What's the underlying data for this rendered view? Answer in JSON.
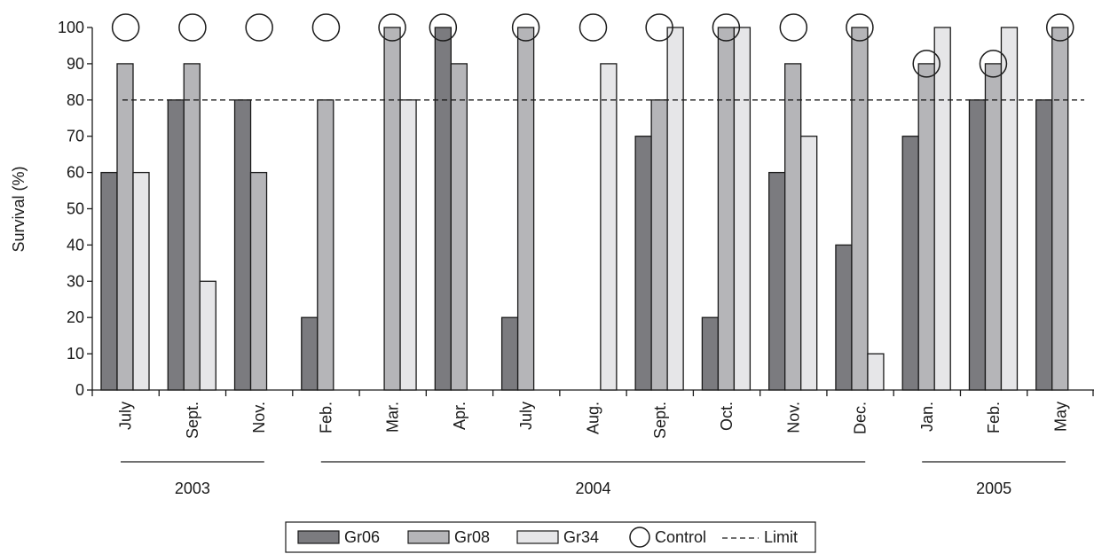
{
  "chart_data": {
    "type": "bar",
    "ylabel": "Survival (%)",
    "ylim": [
      0,
      100
    ],
    "yticks": [
      0,
      10,
      20,
      30,
      40,
      50,
      60,
      70,
      80,
      90,
      100
    ],
    "categories": [
      "July",
      "Sept.",
      "Nov.",
      "Feb.",
      "Mar.",
      "Apr.",
      "July",
      "Aug.",
      "Sept.",
      "Oct.",
      "Nov.",
      "Dec.",
      "Jan.",
      "Feb.",
      "May"
    ],
    "year_groups": [
      {
        "label": "2003",
        "first": 0,
        "last": 2
      },
      {
        "label": "2004",
        "first": 3,
        "last": 11
      },
      {
        "label": "2005",
        "first": 12,
        "last": 14
      }
    ],
    "series": [
      {
        "name": "Gr06",
        "color": "#7b7b7f",
        "values": [
          60,
          80,
          80,
          20,
          null,
          100,
          20,
          null,
          70,
          20,
          60,
          40,
          70,
          80,
          80
        ]
      },
      {
        "name": "Gr08",
        "color": "#b5b5b8",
        "values": [
          90,
          90,
          60,
          80,
          100,
          90,
          100,
          null,
          80,
          100,
          90,
          100,
          90,
          90,
          100
        ]
      },
      {
        "name": "Gr34",
        "color": "#e6e6e8",
        "values": [
          60,
          30,
          null,
          null,
          80,
          null,
          null,
          90,
          100,
          100,
          70,
          10,
          100,
          100,
          null
        ]
      }
    ],
    "control": {
      "name": "Control",
      "values": [
        100,
        100,
        100,
        100,
        100,
        100,
        100,
        100,
        100,
        100,
        100,
        100,
        90,
        90,
        100
      ],
      "anchor_series": [
        null,
        null,
        null,
        null,
        "Gr08",
        "Gr06",
        "Gr08",
        null,
        "Gr08",
        "Gr08",
        null,
        "Gr08",
        "Gr08",
        "Gr08",
        "Gr08"
      ]
    },
    "limit": {
      "name": "Limit",
      "value": 80,
      "style": "dashed"
    },
    "grid": false,
    "legend": {
      "position": "bottom"
    }
  }
}
